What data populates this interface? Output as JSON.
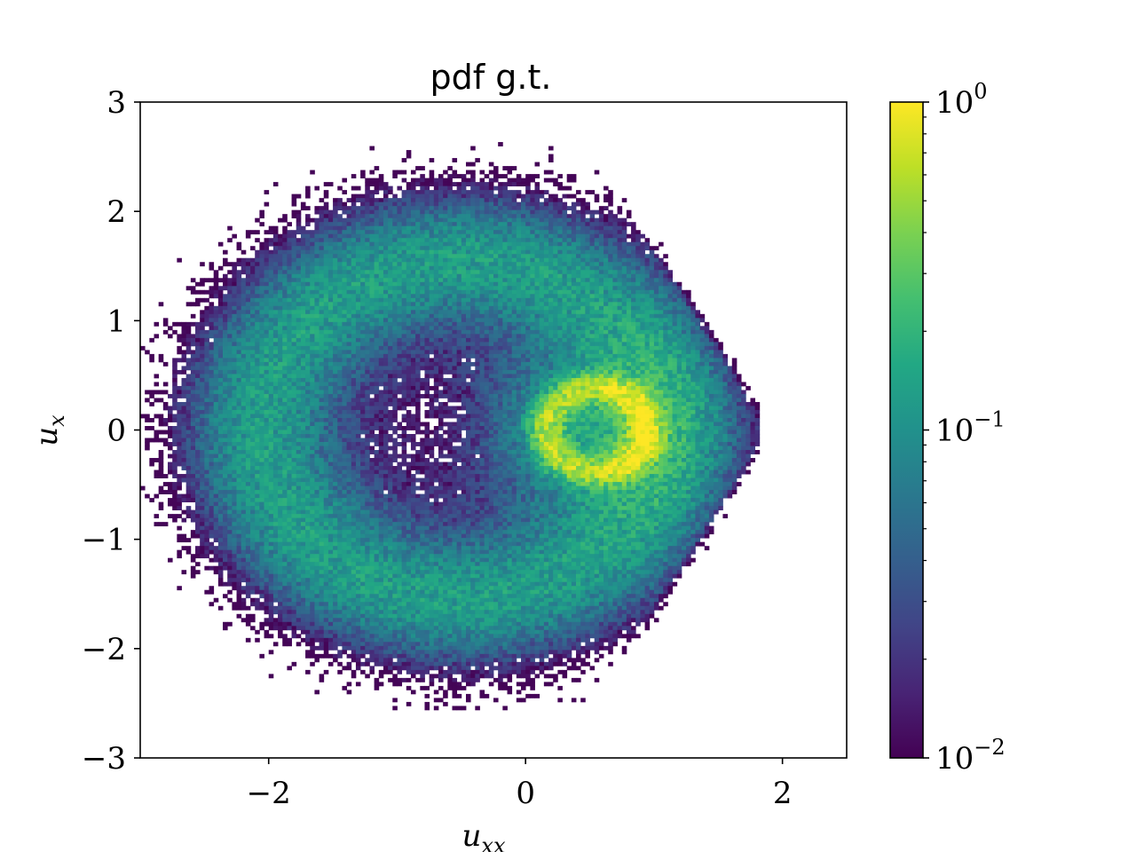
{
  "chart_data": {
    "type": "heatmap",
    "title": "pdf g.t.",
    "xlabel": "u",
    "xlabel_sub": "xx",
    "ylabel": "u",
    "ylabel_sub": "x",
    "xlim": [
      -3,
      2.5
    ],
    "ylim": [
      -3,
      3
    ],
    "xticks": [
      -2,
      0,
      2
    ],
    "yticks": [
      -3,
      -2,
      -1,
      0,
      1,
      2,
      3
    ],
    "xtick_labels": [
      "−2",
      "0",
      "2"
    ],
    "ytick_labels": [
      "−3",
      "−2",
      "−1",
      "0",
      "1",
      "2",
      "3"
    ],
    "colormap": "viridis",
    "color_scale": "log",
    "colorbar": {
      "min": 0.01,
      "max": 1,
      "ticks": [
        {
          "value": 1,
          "base": "10",
          "exp": "0"
        },
        {
          "value": 0.1,
          "base": "10",
          "exp": "−1"
        },
        {
          "value": 0.01,
          "base": "10",
          "exp": "−2"
        }
      ]
    },
    "grid": false,
    "bins": [
      154,
      164
    ],
    "structure": {
      "outer_ring": {
        "center": [
          -0.5,
          0
        ],
        "radius": 1.55,
        "peak_density": 0.12
      },
      "inner_ring": {
        "center": [
          0.55,
          0
        ],
        "radius": 0.38,
        "peak_density": 0.95
      },
      "outer_extent": {
        "center": [
          -0.5,
          0
        ],
        "radius": 2.35
      }
    }
  }
}
